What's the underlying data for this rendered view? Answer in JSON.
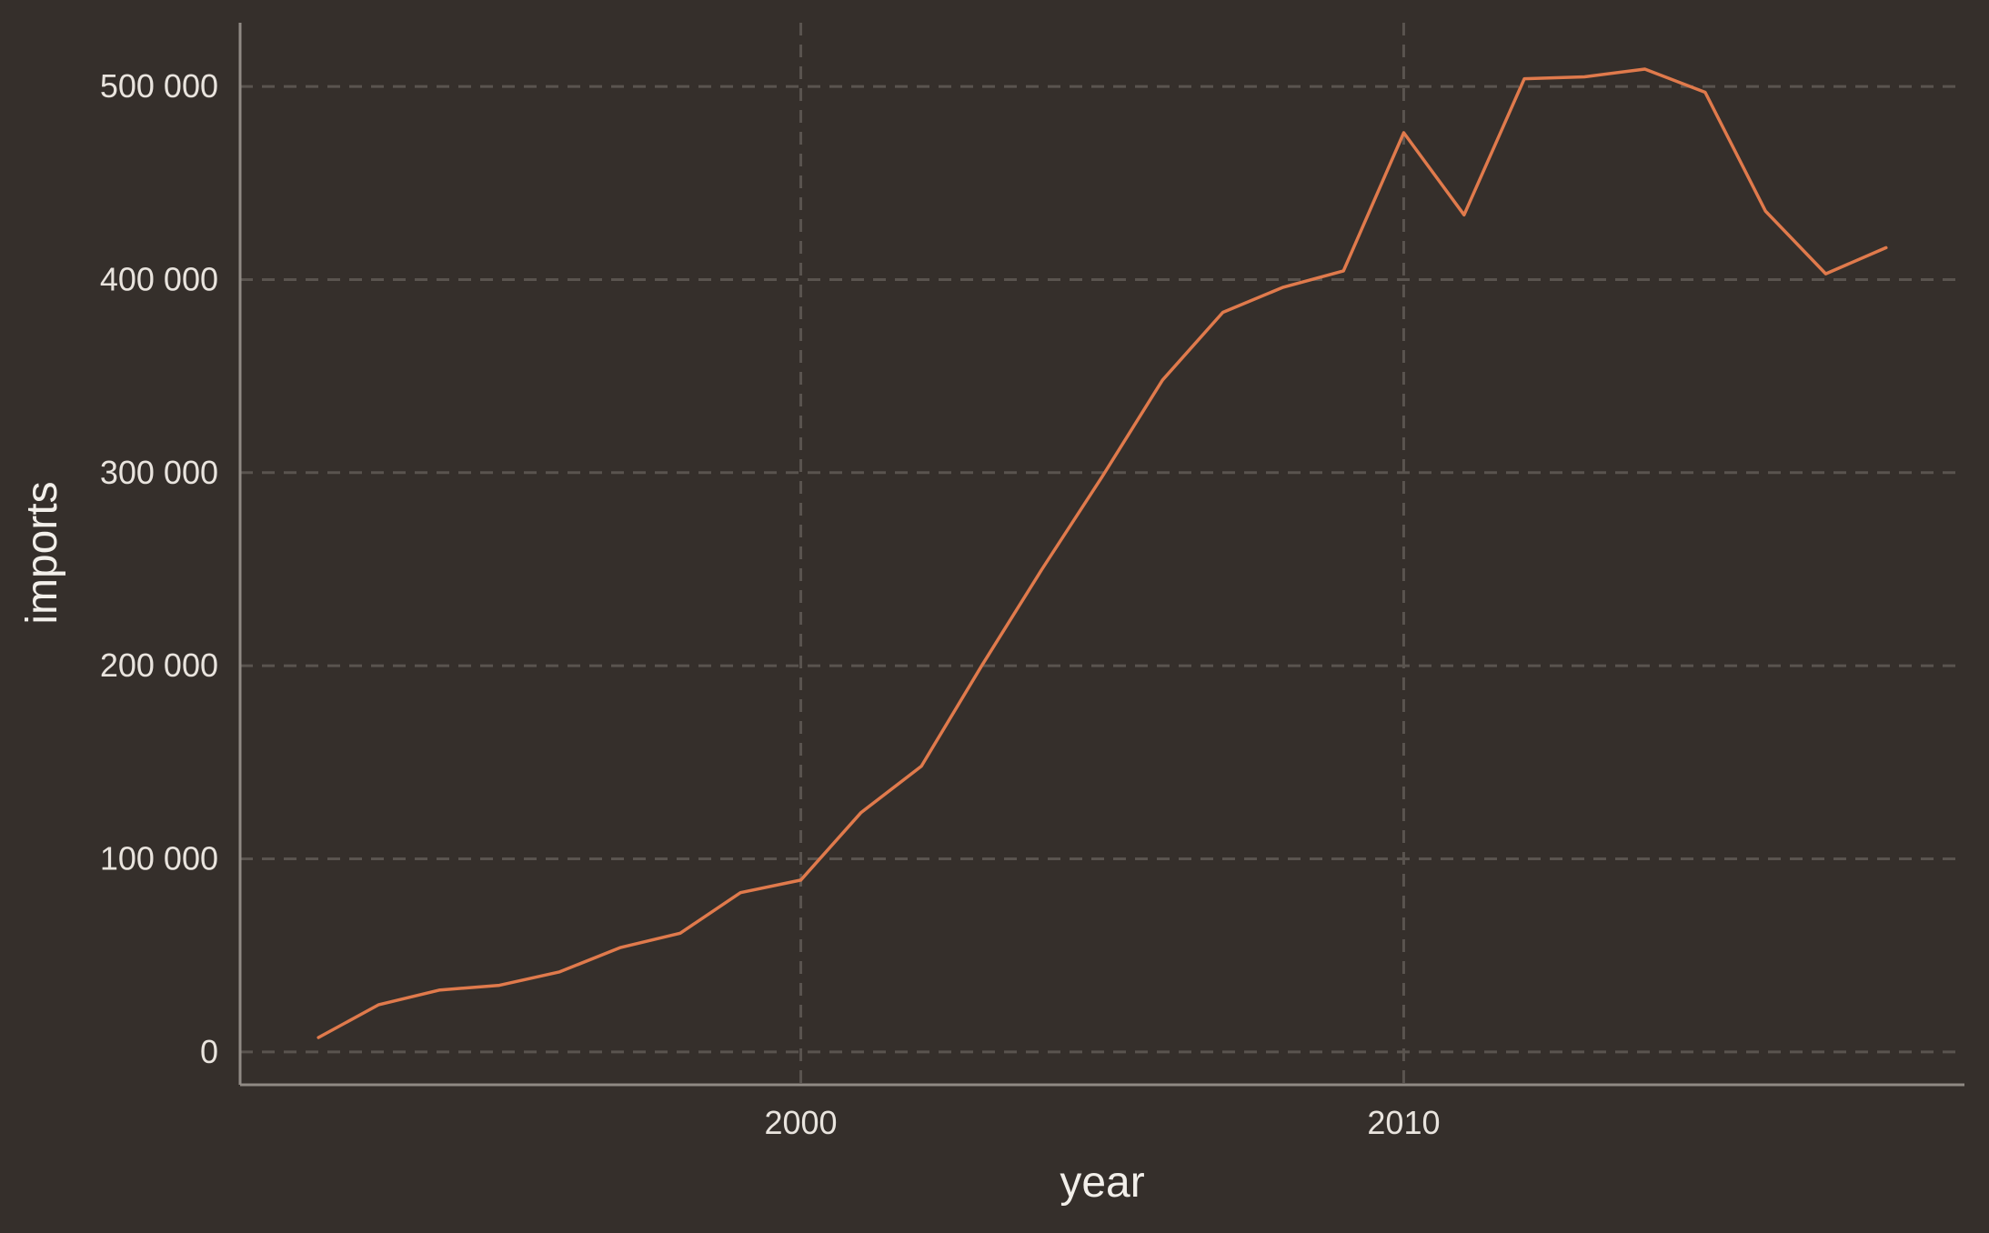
{
  "chart_data": {
    "type": "line",
    "title": "",
    "xlabel": "year",
    "ylabel": "imports",
    "xlim": [
      1990.7,
      2019.3
    ],
    "ylim": [
      -17000,
      533000
    ],
    "x_ticks": [
      2000,
      2010
    ],
    "x_tick_labels": [
      "2000",
      "2010"
    ],
    "y_ticks": [
      0,
      100000,
      200000,
      300000,
      400000,
      500000
    ],
    "y_tick_labels": [
      "0",
      "100 000",
      "200 000",
      "300 000",
      "400 000",
      "500 000"
    ],
    "grid": true,
    "legend": "none",
    "series": [
      {
        "color": "#e07a4c",
        "x": [
          1992,
          1993,
          1994,
          1995,
          1996,
          1997,
          1998,
          1999,
          2000,
          2001,
          2002,
          2003,
          2004,
          2005,
          2006,
          2007,
          2008,
          2009,
          2010,
          2011,
          2012,
          2013,
          2014,
          2015,
          2016,
          2017,
          2018
        ],
        "values": [
          7500,
          24500,
          32000,
          34500,
          41500,
          54000,
          61500,
          82500,
          89000,
          124000,
          148000,
          200000,
          250000,
          298000,
          348000,
          383000,
          396000,
          404500,
          476000,
          433500,
          504000,
          505000,
          509000,
          497000,
          435500,
          403000,
          416500
        ]
      }
    ]
  },
  "colors": {
    "background": "#352f2b",
    "grid": "#5a544f",
    "axis": "#908a84",
    "text": "#e9e4de",
    "line": "#e07a4c"
  }
}
